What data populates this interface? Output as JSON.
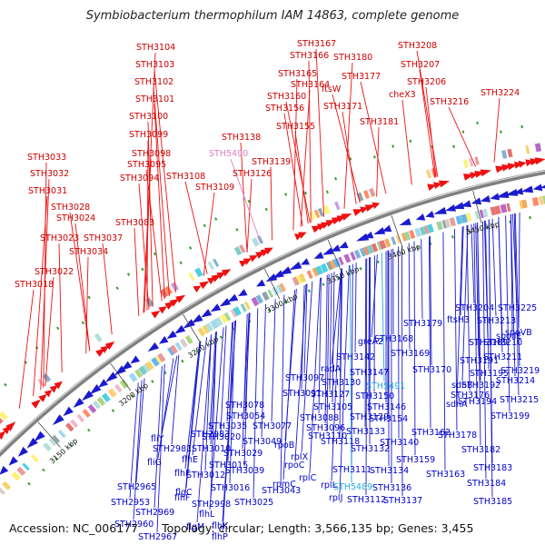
{
  "title": "Symbiobacterium thermophilum IAM 14863, complete genome",
  "footer": {
    "accession": "Accession: NC_006177",
    "topology": "Topology: circular; Length: 3,566,135 bp; Genes: 3,455"
  },
  "colors": {
    "forward_label": "#cc0000",
    "reverse_label": "#0000cc",
    "rna_label": "#2aa8d6",
    "pseudo_label": "#e07fc0",
    "backbone": "#808080"
  },
  "scale_ticks": [
    "3150 kbp",
    "3200 kbp",
    "3250 kbp",
    "3300 kbp",
    "3350 kbp",
    "3400 kbp",
    "3450 kbp"
  ],
  "forward_labels": [
    "STH3018",
    "STH3022",
    "STH3034",
    "STH3023",
    "STH3037",
    "STH3024",
    "STH3028",
    "STH3031",
    "STH3032",
    "STH3033",
    "STH3083",
    "STH3094",
    "STH3095",
    "STH3108",
    "STH3109",
    "STH3098",
    "STH3099",
    "STH3100",
    "STH3101",
    "STH3102",
    "STH3103",
    "STH3104",
    "STH3126",
    "STH3139",
    "STH3138",
    "STH3155",
    "STH3156",
    "STH3160",
    "STH3164",
    "STH3165",
    "STH3166",
    "STH3167",
    "STH3171",
    "ftsW",
    "STH3177",
    "STH3180",
    "STH3181",
    "cheX3",
    "STH3206",
    "STH3207",
    "STH3208",
    "STH3216",
    "STH3224"
  ],
  "pseudo_labels": [
    "STH5490"
  ],
  "reverse_labels": [
    "STH2953",
    "STH2960",
    "STH2967",
    "STH2965",
    "STH2969",
    "flgM",
    "flhF",
    "flhP",
    "flhK",
    "flhL",
    "flgC",
    "flhE",
    "flhF",
    "fliG",
    "fliY",
    "STH2981",
    "STH2983",
    "STH2998",
    "STH3010",
    "STH3012",
    "STH3015",
    "STH3016",
    "STH3020",
    "STH3025",
    "STH3029",
    "STH3035",
    "STH3039",
    "STH3043",
    "STH3049",
    "STH3054",
    "rpmC",
    "rpoC",
    "rpoB",
    "rplC",
    "rplX",
    "STH3077",
    "STH3078",
    "STH3088",
    "STH3091",
    "STH3096",
    "rplL",
    "rplJ",
    "STH3097",
    "radA",
    "STH3105",
    "STH3110",
    "STH3111",
    "STH3112",
    "STH3118",
    "STH3127",
    "STH3129",
    "STH3130",
    "STH3132",
    "STH3133",
    "STH3134",
    "STH3136",
    "STH3137",
    "greA2",
    "STH3142",
    "STH3146",
    "STH3147",
    "STH3150",
    "STH3154",
    "STH3159",
    "STH3162",
    "STH3163",
    "STH3168",
    "STH3169",
    "STH3170",
    "STH3176",
    "STH3178",
    "STH3179",
    "STH3182",
    "STH3183",
    "STH3184",
    "STH3185",
    "ftsH3",
    "STH3189",
    "STH3191",
    "STH3192",
    "STH3194",
    "STH3195",
    "sdhA",
    "sdhB",
    "STH3199",
    "STH3204",
    "STH3210",
    "STH3211",
    "STH3213",
    "STH3214",
    "STH3215",
    "STH3219",
    "STH3225",
    "spoIIE",
    "spoVB",
    "STH3140"
  ],
  "rna_labels": [
    "STH5491",
    "STH5489"
  ]
}
